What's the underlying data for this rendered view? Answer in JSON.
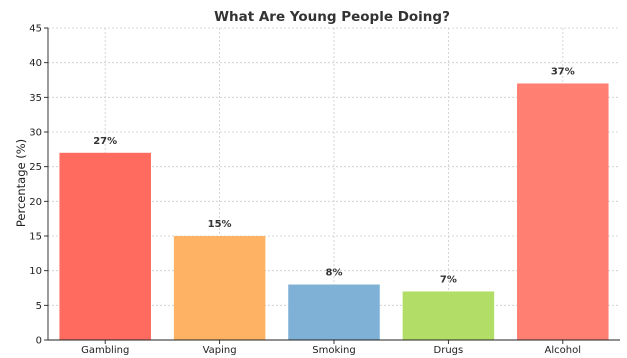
{
  "chart_data": {
    "type": "bar",
    "title": "What Are Young People Doing?",
    "xlabel": "",
    "ylabel": "Percentage (%)",
    "categories": [
      "Gambling",
      "Vaping",
      "Smoking",
      "Drugs",
      "Alcohol"
    ],
    "values": [
      27,
      15,
      8,
      7,
      37
    ],
    "data_labels": [
      "27%",
      "15%",
      "8%",
      "7%",
      "37%"
    ],
    "colors": [
      "#ff6b5e",
      "#fdb264",
      "#7fb0d6",
      "#b2dd66",
      "#ff7f72"
    ],
    "ylim": [
      0,
      45
    ],
    "yticks": [
      0,
      5,
      10,
      15,
      20,
      25,
      30,
      35,
      40,
      45
    ],
    "grid": true
  }
}
